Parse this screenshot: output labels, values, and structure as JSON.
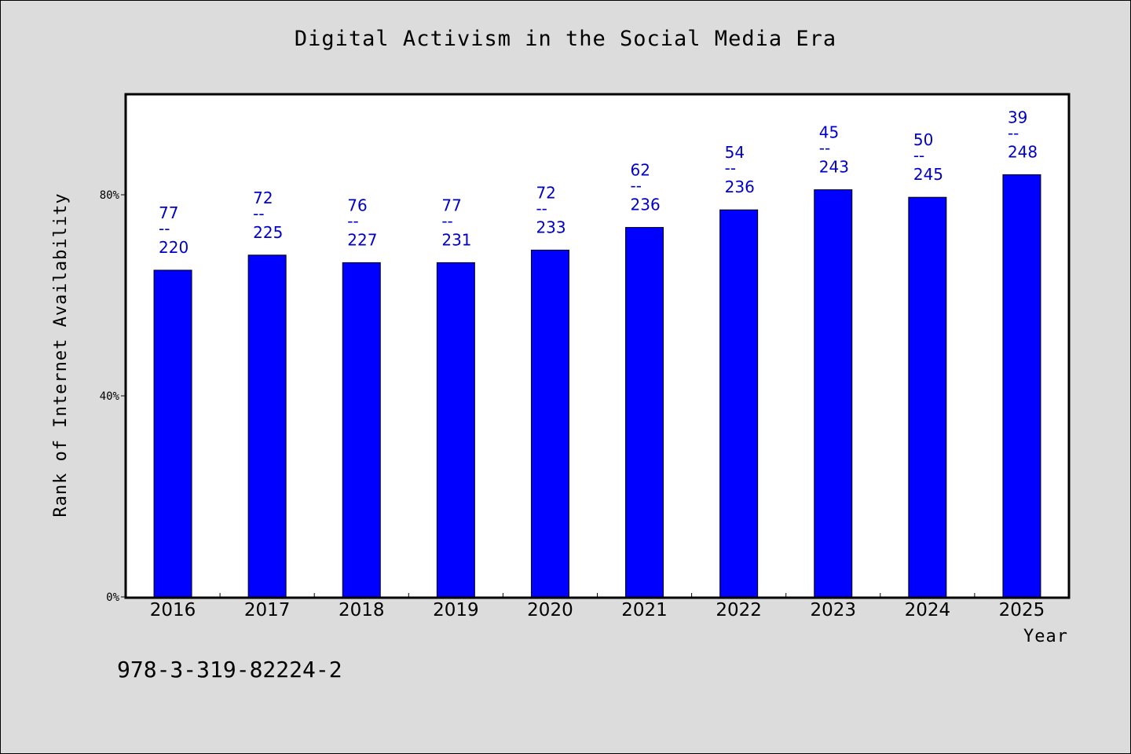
{
  "chart_data": {
    "type": "bar",
    "title": "Digital Activism in the Social Media Era",
    "xlabel": "Year",
    "ylabel": "Rank of Internet Availability",
    "categories": [
      "2016",
      "2017",
      "2018",
      "2019",
      "2020",
      "2021",
      "2022",
      "2023",
      "2024",
      "2025"
    ],
    "values": [
      65,
      68,
      66.5,
      66.5,
      69,
      73.5,
      77,
      81,
      79.5,
      84
    ],
    "data_labels": [
      {
        "top": "77",
        "sep": "--",
        "bottom": "220"
      },
      {
        "top": "72",
        "sep": "--",
        "bottom": "225"
      },
      {
        "top": "76",
        "sep": "--",
        "bottom": "227"
      },
      {
        "top": "77",
        "sep": "--",
        "bottom": "231"
      },
      {
        "top": "72",
        "sep": "--",
        "bottom": "233"
      },
      {
        "top": "62",
        "sep": "--",
        "bottom": "236"
      },
      {
        "top": "54",
        "sep": "--",
        "bottom": "236"
      },
      {
        "top": "45",
        "sep": "--",
        "bottom": "243"
      },
      {
        "top": "50",
        "sep": "--",
        "bottom": "245"
      },
      {
        "top": "39",
        "sep": "--",
        "bottom": "248"
      }
    ],
    "yticks": [
      0,
      40,
      80
    ],
    "ytick_labels": [
      "0%",
      "40%",
      "80%"
    ],
    "ylim": [
      0,
      100
    ],
    "bar_color": "#0000ff",
    "label_color": "#0000cc",
    "plot_background": "#ffffff",
    "page_background": "#dcdcdc",
    "grid": false,
    "legend": "none"
  },
  "footer": {
    "text": "978-3-319-82224-2"
  }
}
